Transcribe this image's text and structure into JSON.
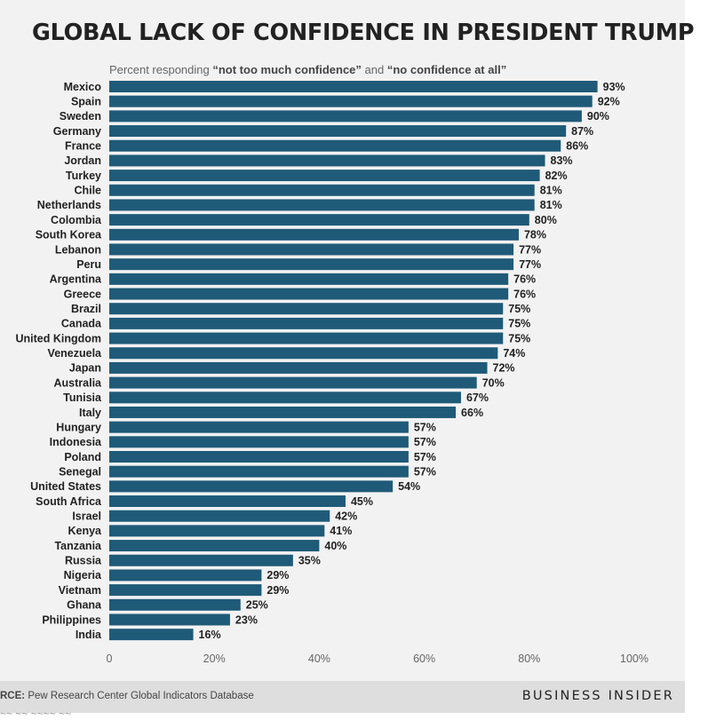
{
  "chart_data": {
    "type": "bar",
    "orientation": "horizontal",
    "title": "GLOBAL LACK OF CONFIDENCE IN PRESIDENT TRUMP",
    "subtitle": {
      "prefix": "Percent responding ",
      "term1": "“not too much confidence”",
      "joiner": " and ",
      "term2": "“no confidence at all”"
    },
    "categories": [
      "Mexico",
      "Spain",
      "Sweden",
      "Germany",
      "France",
      "Jordan",
      "Turkey",
      "Chile",
      "Netherlands",
      "Colombia",
      "South Korea",
      "Lebanon",
      "Peru",
      "Argentina",
      "Greece",
      "Brazil",
      "Canada",
      "United Kingdom",
      "Venezuela",
      "Japan",
      "Australia",
      "Tunisia",
      "Italy",
      "Hungary",
      "Indonesia",
      "Poland",
      "Senegal",
      "United States",
      "South Africa",
      "Israel",
      "Kenya",
      "Tanzania",
      "Russia",
      "Nigeria",
      "Vietnam",
      "Ghana",
      "Philippines",
      "India"
    ],
    "values": [
      93,
      92,
      90,
      87,
      86,
      83,
      82,
      81,
      81,
      80,
      78,
      77,
      77,
      76,
      76,
      75,
      75,
      75,
      74,
      72,
      70,
      67,
      66,
      57,
      57,
      57,
      57,
      54,
      45,
      42,
      41,
      40,
      35,
      29,
      29,
      25,
      23,
      16
    ],
    "value_suffix": "%",
    "xlim": [
      0,
      100
    ],
    "x_ticks": [
      0,
      20,
      40,
      60,
      80,
      100
    ],
    "x_tick_labels": [
      "0",
      "20%",
      "40%",
      "60%",
      "80%",
      "100%"
    ],
    "bar_color": "#1f5a78",
    "grid": false,
    "legend": "none"
  },
  "footer": {
    "source_label": "RCE:",
    "source_text": " Pew Research Center Global Indicators Database",
    "brand": "BUSINESS INSIDER",
    "cut_off_text": "~~ ~~ ~~~~ ~~"
  }
}
